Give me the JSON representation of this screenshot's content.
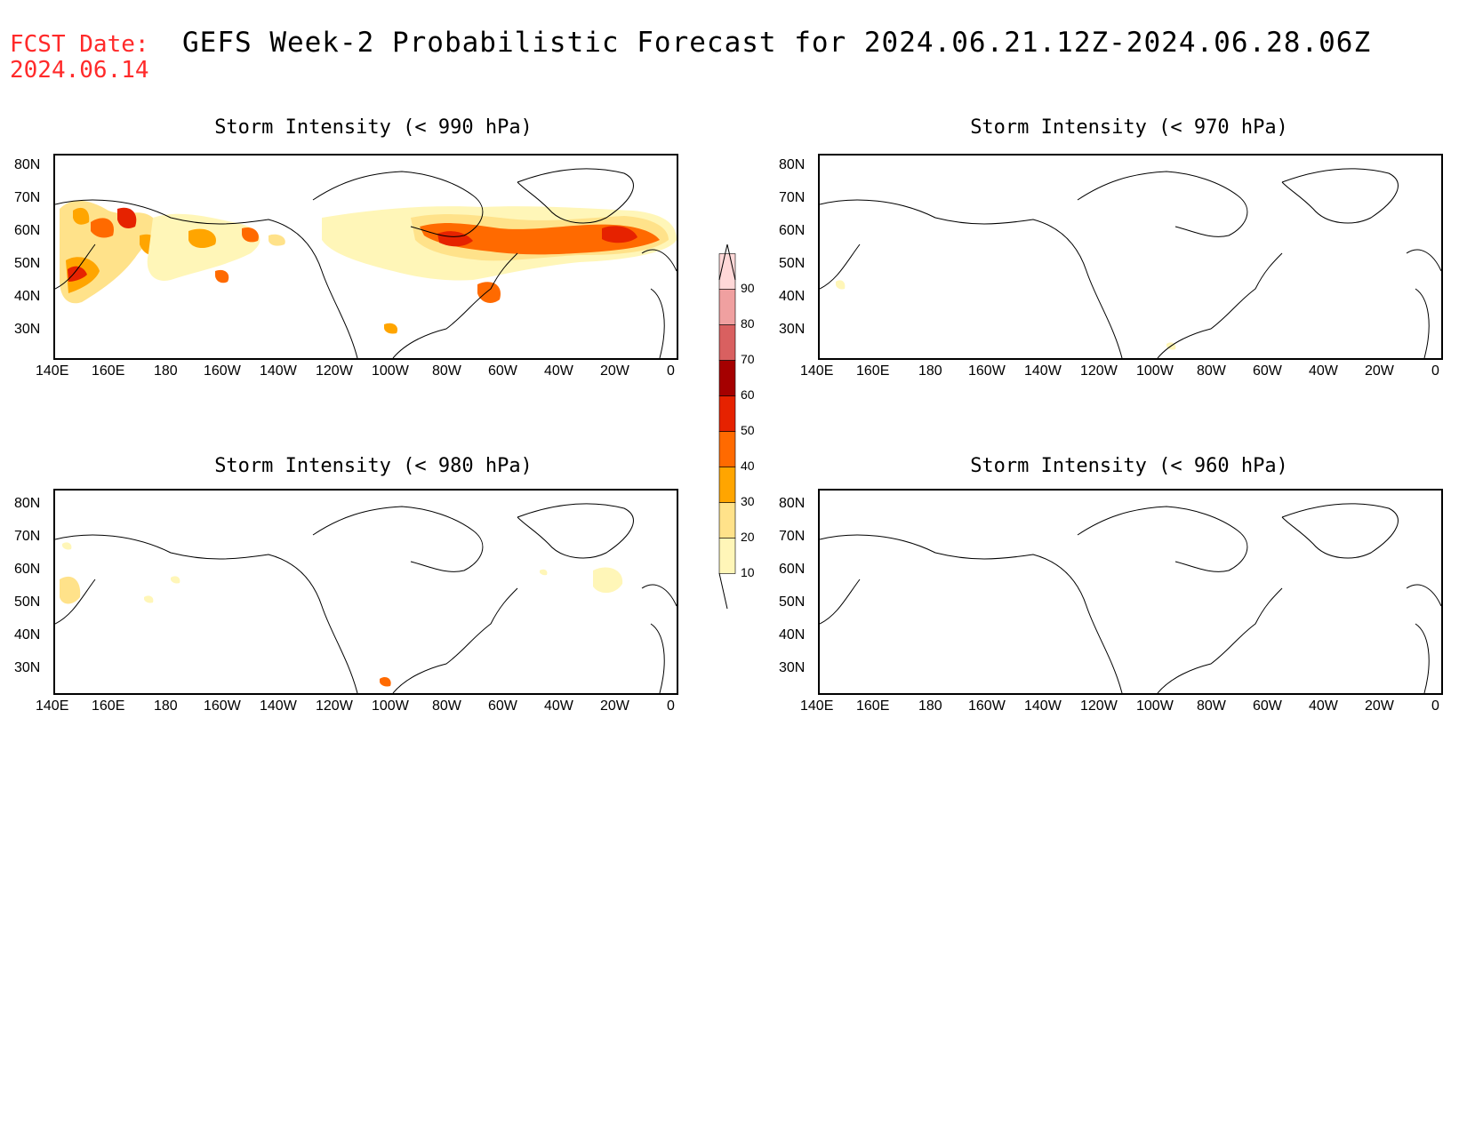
{
  "header": {
    "fcst_line1": "FCST Date:",
    "fcst_line2": "2024.06.14",
    "title": "GEFS Week-2 Probabilistic Forecast for 2024.06.21.12Z-2024.06.28.06Z",
    "fcst_color": "#ff2a2a"
  },
  "axes": {
    "lat_ticks": [
      "80N",
      "70N",
      "60N",
      "50N",
      "40N",
      "30N"
    ],
    "lon_ticks": [
      "140E",
      "160E",
      "180",
      "160W",
      "140W",
      "120W",
      "100W",
      "80W",
      "60W",
      "40W",
      "20W",
      "0"
    ]
  },
  "panels": [
    {
      "id": "p990",
      "title": "Storm Intensity (< 990 hPa)"
    },
    {
      "id": "p970",
      "title": "Storm Intensity (< 970 hPa)"
    },
    {
      "id": "p980",
      "title": "Storm Intensity (< 980 hPa)"
    },
    {
      "id": "p960",
      "title": "Storm Intensity (< 960 hPa)"
    }
  ],
  "colorbar": {
    "levels": [
      "10",
      "20",
      "30",
      "40",
      "50",
      "60",
      "70",
      "80",
      "90"
    ],
    "colors": [
      "#fff6b8",
      "#ffe28a",
      "#ffa500",
      "#ff6a00",
      "#e62200",
      "#a50000",
      "#d96060",
      "#f0a0a0",
      "#ffd8d8"
    ]
  }
}
